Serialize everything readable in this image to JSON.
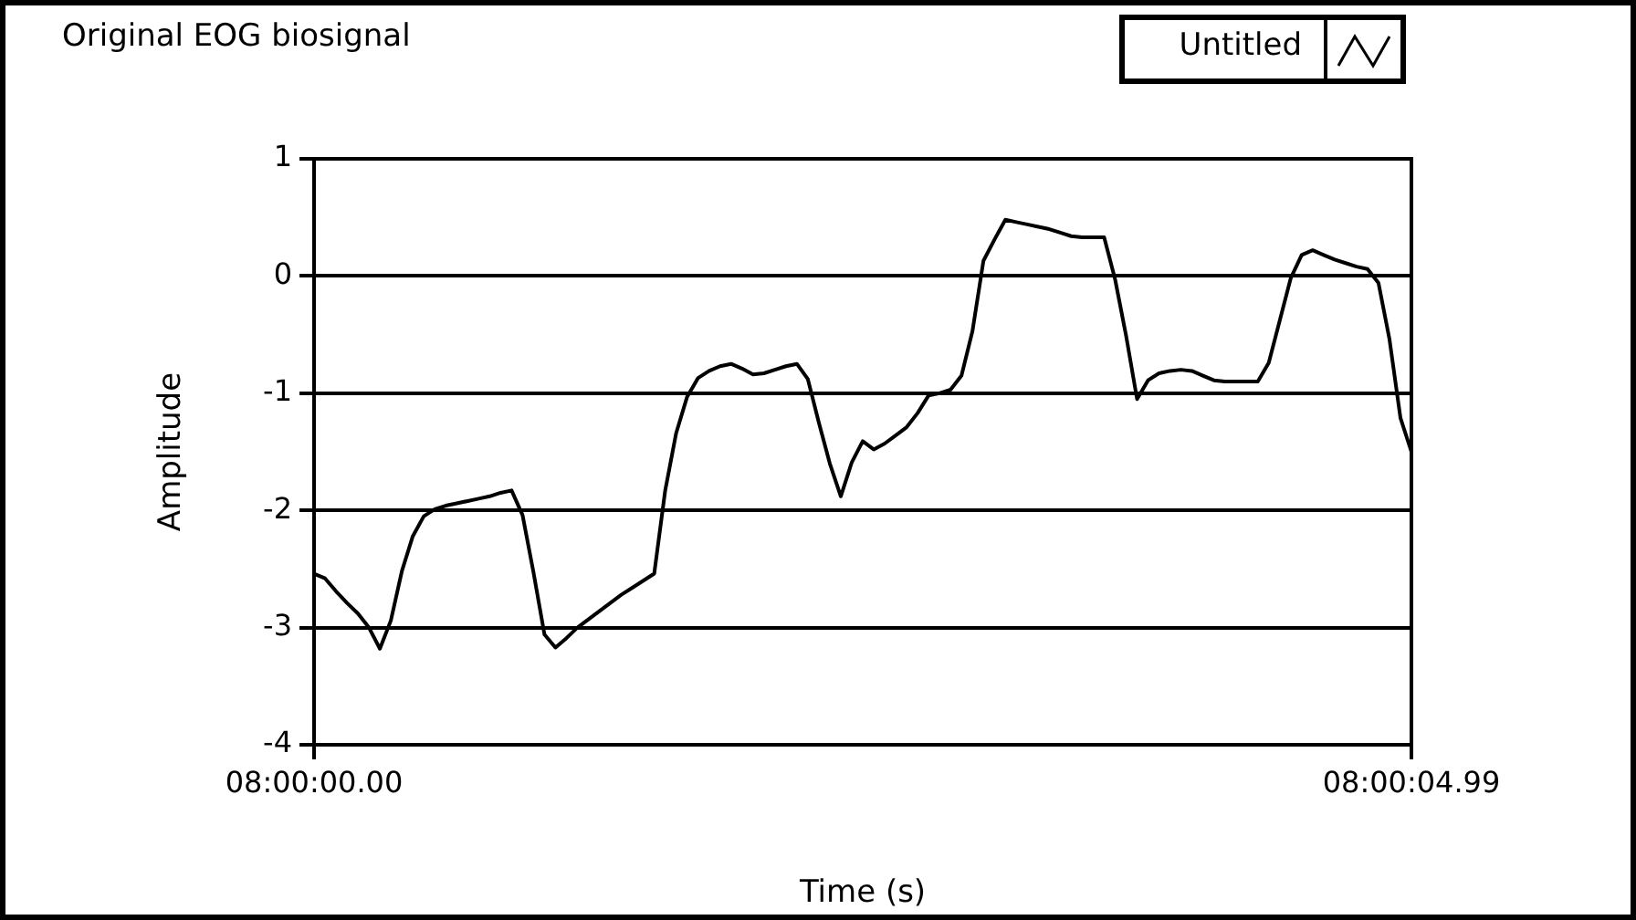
{
  "chart_data": {
    "type": "line",
    "title": "Original EOG biosignal",
    "xlabel": "Time (s)",
    "ylabel": "Amplitude",
    "categories": [
      "08:00:00.00",
      null,
      null,
      null,
      null,
      null,
      null,
      null,
      null,
      null,
      null,
      null,
      null,
      null,
      null,
      null,
      null,
      null,
      null,
      null,
      null,
      null,
      null,
      null,
      null,
      null,
      null,
      null,
      null,
      null,
      null,
      null,
      null,
      null,
      null,
      null,
      null,
      null,
      null,
      null,
      null,
      null,
      null,
      null,
      null,
      null,
      null,
      null,
      null,
      null,
      null,
      null,
      null,
      null,
      null,
      null,
      null,
      null,
      null,
      null,
      null,
      null,
      null,
      null,
      null,
      null,
      null,
      null,
      null,
      null,
      null,
      null,
      null,
      null,
      null,
      null,
      null,
      null,
      null,
      null,
      null,
      null,
      null,
      null,
      null,
      null,
      null,
      null,
      null,
      null,
      null,
      null,
      null,
      null,
      null,
      null,
      null,
      null,
      null,
      null,
      "08:00:04.99"
    ],
    "series": [
      {
        "name": "Untitled",
        "color": "#000000",
        "values": [
          -2.54,
          -2.58,
          -2.69,
          -2.79,
          -2.88,
          -3.0,
          -3.18,
          -2.94,
          -2.52,
          -2.22,
          -2.05,
          -1.99,
          -1.96,
          -1.94,
          -1.92,
          -1.9,
          -1.88,
          -1.85,
          -1.83,
          -2.04,
          -2.53,
          -3.06,
          -3.17,
          -3.09,
          -3.0,
          -2.93,
          -2.86,
          -2.79,
          -2.72,
          -2.66,
          -2.6,
          -2.54,
          -1.83,
          -1.34,
          -1.03,
          -0.87,
          -0.81,
          -0.77,
          -0.75,
          -0.79,
          -0.84,
          -0.83,
          -0.8,
          -0.77,
          -0.75,
          -0.88,
          -1.25,
          -1.6,
          -1.88,
          -1.59,
          -1.41,
          -1.48,
          -1.43,
          -1.36,
          -1.29,
          -1.17,
          -1.02,
          -1.0,
          -0.97,
          -0.85,
          -0.47,
          0.13,
          0.31,
          0.48,
          0.46,
          0.44,
          0.42,
          0.4,
          0.37,
          0.34,
          0.33,
          0.33,
          0.33,
          -0.03,
          -0.51,
          -1.05,
          -0.89,
          -0.83,
          -0.81,
          -0.8,
          -0.81,
          -0.85,
          -0.89,
          -0.9,
          -0.9,
          -0.9,
          -0.9,
          -0.74,
          -0.38,
          -0.02,
          0.18,
          0.22,
          0.18,
          0.14,
          0.11,
          0.08,
          0.06,
          -0.06,
          -0.54,
          -1.21,
          -1.5
        ]
      }
    ],
    "ylim": [
      -4,
      1
    ],
    "yticks": [
      -4,
      -3,
      -2,
      -1,
      0,
      1
    ],
    "grid": "y",
    "legend": "top right"
  }
}
